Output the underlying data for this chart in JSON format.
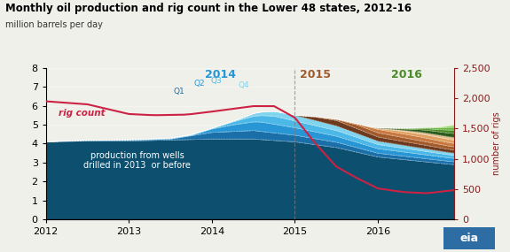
{
  "title": "Monthly oil production and rig count in the Lower 48 states, 2012-16",
  "ylabel_left": "million barrels per day",
  "ylabel_right": "number of rigs",
  "ylim_left": [
    0,
    8
  ],
  "ylim_right": [
    0,
    2500
  ],
  "yticks_left": [
    0,
    1,
    2,
    3,
    4,
    5,
    6,
    7,
    8
  ],
  "yticks_right": [
    0,
    500,
    1000,
    1500,
    2000,
    2500
  ],
  "xticks": [
    2012,
    2013,
    2014,
    2015,
    2016
  ],
  "bg_color": "#f0f0eb",
  "plot_bg_color": "#f0f0eb",
  "base_layer_color": "#0d4f6e",
  "layer_colors_2014": [
    "#1a6fa8",
    "#2895d4",
    "#4cb8e8",
    "#7fd4f0"
  ],
  "layer_colors_2015": [
    "#6b3a1f",
    "#a05a2c",
    "#c87941",
    "#e0a060",
    "#e8c090"
  ],
  "layer_colors_2016": [
    "#2d5a1b",
    "#4a8a28",
    "#6ab440",
    "#90d060",
    "#b8e890"
  ],
  "rig_line_color": "#cc2244",
  "dashed_line_x": 2015.0,
  "label_2014_color": "#2895d4",
  "label_2015_color": "#a05a2c",
  "label_2016_color": "#4a8a28",
  "right_axis_color": "#8b1a1a"
}
